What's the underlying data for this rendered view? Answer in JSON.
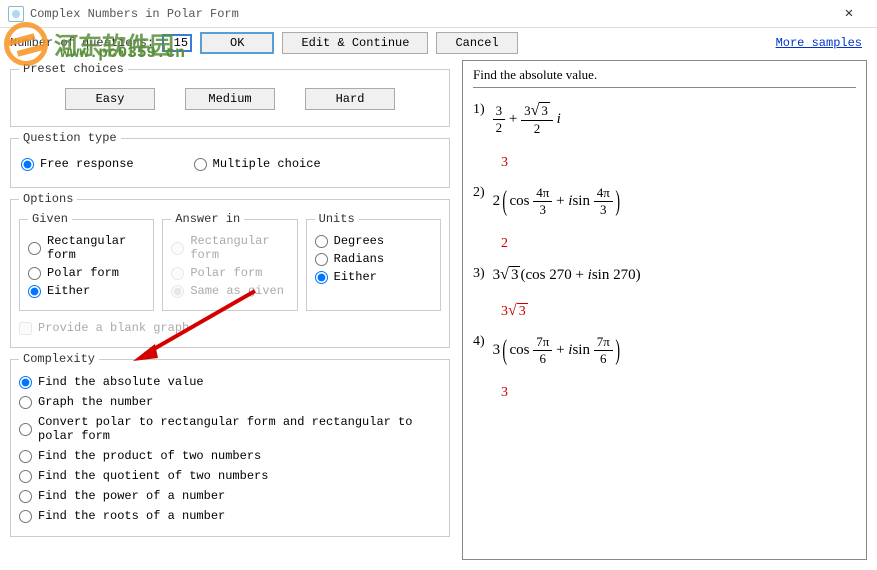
{
  "window": {
    "title": "Complex Numbers in Polar Form"
  },
  "toolbar": {
    "qcount_label": "Number of questions:",
    "qcount_value": "15",
    "ok": "OK",
    "edit_continue": "Edit & Continue",
    "cancel": "Cancel",
    "more_samples": "More samples"
  },
  "preset": {
    "legend": "Preset choices",
    "easy": "Easy",
    "medium": "Medium",
    "hard": "Hard"
  },
  "qtype": {
    "legend": "Question type",
    "free": "Free response",
    "multiple": "Multiple choice",
    "selected": "free"
  },
  "options": {
    "legend": "Options",
    "given": {
      "legend": "Given",
      "rect": "Rectangular form",
      "polar": "Polar form",
      "either": "Either",
      "selected": "either"
    },
    "answer_in": {
      "legend": "Answer in",
      "rect": "Rectangular form",
      "polar": "Polar form",
      "same": "Same as given",
      "selected": "same"
    },
    "units": {
      "legend": "Units",
      "degrees": "Degrees",
      "radians": "Radians",
      "either": "Either",
      "selected": "either"
    },
    "blank_graph": "Provide a blank graph"
  },
  "complexity": {
    "legend": "Complexity",
    "items": [
      "Find the absolute value",
      "Graph the number",
      "Convert polar to rectangular form and rectangular to polar form",
      "Find the product of two numbers",
      "Find the quotient of two numbers",
      "Find the power of a number",
      "Find the roots of a number"
    ],
    "selected": 0
  },
  "preview": {
    "title": "Find the absolute value.",
    "problems": [
      {
        "num": "1)",
        "expr_html": "<span class='frac'><span class='num'>3</span><span class='den'>2</span></span> + <span class='frac'><span class='num'>3<span class='radic'>√</span><span class='sqrt'>3</span></span><span class='den'>2</span></span> <i>i</i>",
        "answer_html": "3"
      },
      {
        "num": "2)",
        "expr_html": "2<span class='paren'>(</span>cos <span class='frac'><span class='num'>4π</span><span class='den'>3</span></span> + <i>i</i>sin <span class='frac'><span class='num'>4π</span><span class='den'>3</span></span><span class='paren'>)</span>",
        "answer_html": "2"
      },
      {
        "num": "3)",
        "expr_html": "3<span class='radic'>√</span><span class='sqrt'>3</span>(cos 270 + <i>i</i>sin 270)",
        "answer_html": "3<span class='radic'>√</span><span class='sqrt' style='border-top-color:#c00'>3</span>"
      },
      {
        "num": "4)",
        "expr_html": "3<span class='paren'>(</span>cos <span class='frac'><span class='num'>7π</span><span class='den'>6</span></span> + <i>i</i>sin <span class='frac'><span class='num'>7π</span><span class='den'>6</span></span><span class='paren'>)</span>",
        "answer_html": "3"
      }
    ]
  },
  "watermark": {
    "text1": "河东软件园",
    "text2": "www.pc0359.cn"
  },
  "colors": {
    "answer": "#cc0000",
    "link": "#0033cc",
    "focus_border": "#3a7bd5",
    "arrow": "#d40000"
  }
}
